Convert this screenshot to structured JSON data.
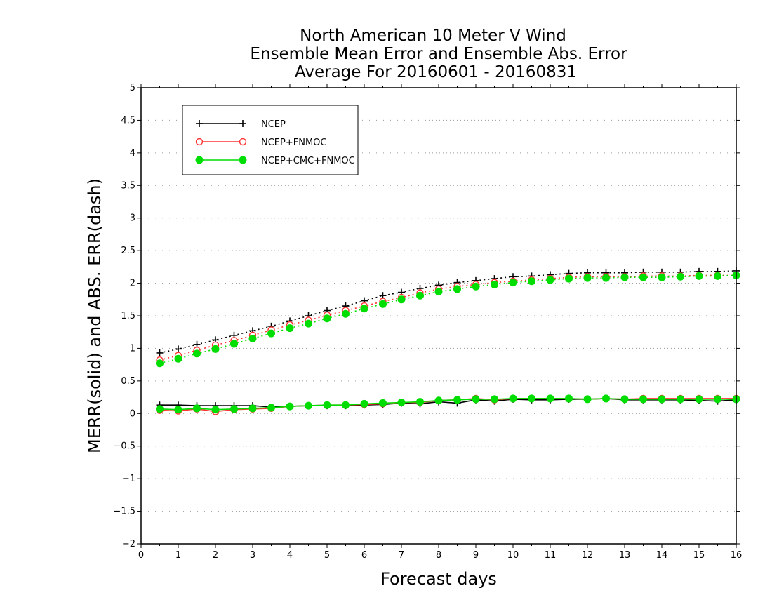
{
  "chart_data": {
    "type": "line",
    "title_lines": [
      "North American 10 Meter V Wind",
      "Ensemble Mean Error and Ensemble Abs. Error",
      "Average For 20160601 - 20160831"
    ],
    "xlabel": "Forecast days",
    "ylabel": "MERR(solid) and ABS. ERR(dash)",
    "xlim": [
      0,
      16
    ],
    "ylim": [
      -2,
      5
    ],
    "x_ticks": [
      0,
      1,
      2,
      3,
      4,
      5,
      6,
      7,
      8,
      9,
      10,
      11,
      12,
      13,
      14,
      15,
      16
    ],
    "y_ticks": [
      -2,
      -1.5,
      -1,
      -0.5,
      0,
      0.5,
      1,
      1.5,
      2,
      2.5,
      3,
      3.5,
      4,
      4.5,
      5
    ],
    "grid": "horizontal-dotted",
    "legend_position": "top-left",
    "x": [
      0.5,
      1,
      1.5,
      2,
      2.5,
      3,
      3.5,
      4,
      4.5,
      5,
      5.5,
      6,
      6.5,
      7,
      7.5,
      8,
      8.5,
      9,
      9.5,
      10,
      10.5,
      11,
      11.5,
      12,
      12.5,
      13,
      13.5,
      14,
      14.5,
      15,
      15.5,
      16
    ],
    "series": [
      {
        "name": "NCEP",
        "color": "#000000",
        "marker": "plus",
        "merr": [
          0.13,
          0.13,
          0.12,
          0.12,
          0.12,
          0.12,
          0.1,
          0.11,
          0.12,
          0.12,
          0.12,
          0.13,
          0.14,
          0.16,
          0.15,
          0.18,
          0.16,
          0.21,
          0.19,
          0.22,
          0.21,
          0.21,
          0.22,
          0.22,
          0.23,
          0.21,
          0.21,
          0.21,
          0.21,
          0.2,
          0.19,
          0.21
        ],
        "abs_err": [
          0.93,
          0.99,
          1.06,
          1.13,
          1.2,
          1.27,
          1.34,
          1.42,
          1.5,
          1.58,
          1.65,
          1.73,
          1.81,
          1.86,
          1.92,
          1.97,
          2.01,
          2.04,
          2.07,
          2.1,
          2.11,
          2.13,
          2.15,
          2.16,
          2.16,
          2.16,
          2.17,
          2.17,
          2.17,
          2.18,
          2.18,
          2.19
        ]
      },
      {
        "name": "NCEP+FNMOC",
        "color": "#ff3333",
        "marker": "open-circle",
        "merr": [
          0.05,
          0.04,
          0.07,
          0.03,
          0.06,
          0.07,
          0.08,
          0.11,
          0.12,
          0.13,
          0.13,
          0.14,
          0.15,
          0.17,
          0.17,
          0.2,
          0.21,
          0.23,
          0.21,
          0.23,
          0.23,
          0.23,
          0.23,
          0.22,
          0.23,
          0.22,
          0.23,
          0.23,
          0.23,
          0.23,
          0.23,
          0.23
        ],
        "abs_err": [
          0.82,
          0.89,
          0.97,
          1.05,
          1.12,
          1.2,
          1.28,
          1.36,
          1.43,
          1.51,
          1.58,
          1.65,
          1.72,
          1.78,
          1.85,
          1.91,
          1.95,
          1.98,
          2.01,
          2.03,
          2.05,
          2.07,
          2.09,
          2.1,
          2.1,
          2.1,
          2.11,
          2.11,
          2.11,
          2.12,
          2.12,
          2.12
        ]
      },
      {
        "name": "NCEP+CMC+FNMOC",
        "color": "#00dd00",
        "marker": "filled-circle",
        "merr": [
          0.07,
          0.06,
          0.08,
          0.06,
          0.07,
          0.08,
          0.09,
          0.11,
          0.12,
          0.13,
          0.13,
          0.15,
          0.16,
          0.17,
          0.18,
          0.2,
          0.21,
          0.22,
          0.22,
          0.23,
          0.23,
          0.23,
          0.23,
          0.22,
          0.23,
          0.22,
          0.22,
          0.22,
          0.22,
          0.22,
          0.22,
          0.22
        ],
        "abs_err": [
          0.77,
          0.84,
          0.92,
          0.99,
          1.07,
          1.15,
          1.23,
          1.31,
          1.38,
          1.46,
          1.53,
          1.61,
          1.68,
          1.75,
          1.81,
          1.87,
          1.91,
          1.95,
          1.98,
          2.01,
          2.03,
          2.05,
          2.07,
          2.08,
          2.08,
          2.09,
          2.09,
          2.09,
          2.1,
          2.11,
          2.11,
          2.12
        ]
      }
    ]
  }
}
